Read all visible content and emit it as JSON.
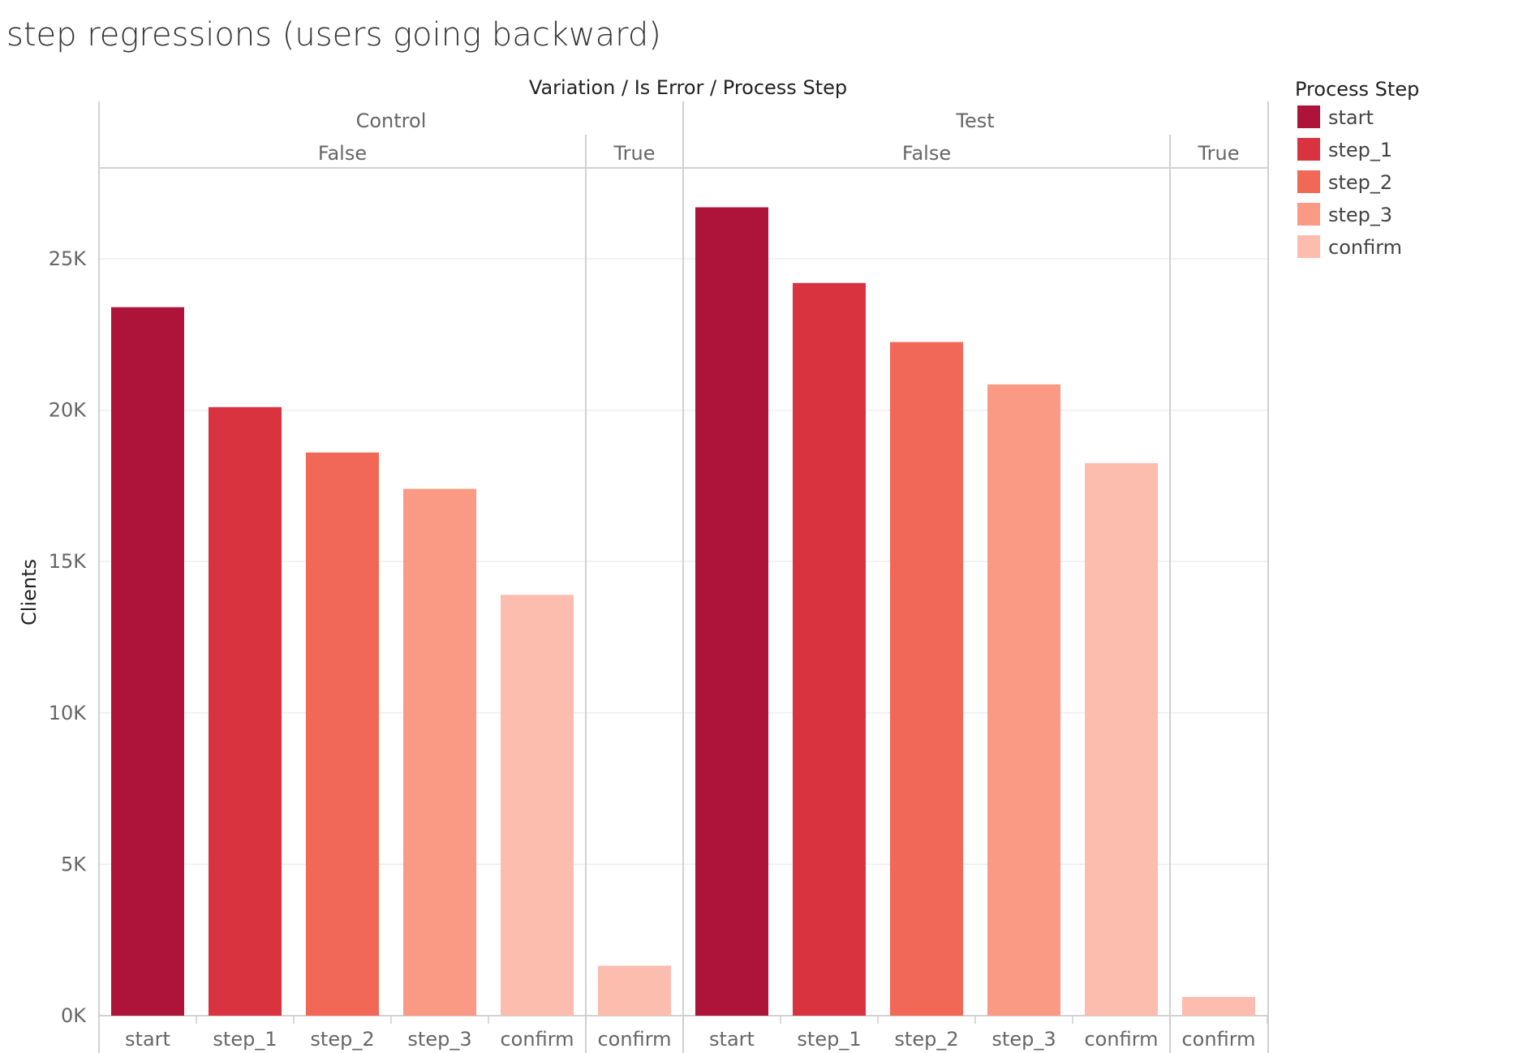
{
  "title": "step regressions (users going backward)",
  "chart_data": {
    "type": "bar",
    "title": "step regressions (users going backward)",
    "header": "Variation / Is Error / Process Step",
    "xlabel": "",
    "ylabel": "Clients",
    "ylim": [
      0,
      28000
    ],
    "yticks": [
      0,
      5000,
      10000,
      15000,
      20000,
      25000
    ],
    "ytick_labels": [
      "0K",
      "5K",
      "10K",
      "15K",
      "20K",
      "25K"
    ],
    "grid": true,
    "legend": {
      "title": "Process Step",
      "placement": "top-right",
      "items": [
        "start",
        "step_1",
        "step_2",
        "step_3",
        "confirm"
      ]
    },
    "colors": {
      "start": "#ae1339",
      "step_1": "#d93340",
      "step_2": "#f26857",
      "step_3": "#fa9a84",
      "confirm": "#fcbcae"
    },
    "groups": [
      {
        "variation": "Control",
        "subgroups": [
          {
            "is_error": "False",
            "bars": [
              {
                "step": "start",
                "value": 23400
              },
              {
                "step": "step_1",
                "value": 20100
              },
              {
                "step": "step_2",
                "value": 18600
              },
              {
                "step": "step_3",
                "value": 17400
              },
              {
                "step": "confirm",
                "value": 13900
              }
            ]
          },
          {
            "is_error": "True",
            "bars": [
              {
                "step": "confirm",
                "value": 1650
              }
            ]
          }
        ]
      },
      {
        "variation": "Test",
        "subgroups": [
          {
            "is_error": "False",
            "bars": [
              {
                "step": "start",
                "value": 26700
              },
              {
                "step": "step_1",
                "value": 24200
              },
              {
                "step": "step_2",
                "value": 22250
              },
              {
                "step": "step_3",
                "value": 20850
              },
              {
                "step": "confirm",
                "value": 18250
              }
            ]
          },
          {
            "is_error": "True",
            "bars": [
              {
                "step": "confirm",
                "value": 620
              }
            ]
          }
        ]
      }
    ]
  }
}
